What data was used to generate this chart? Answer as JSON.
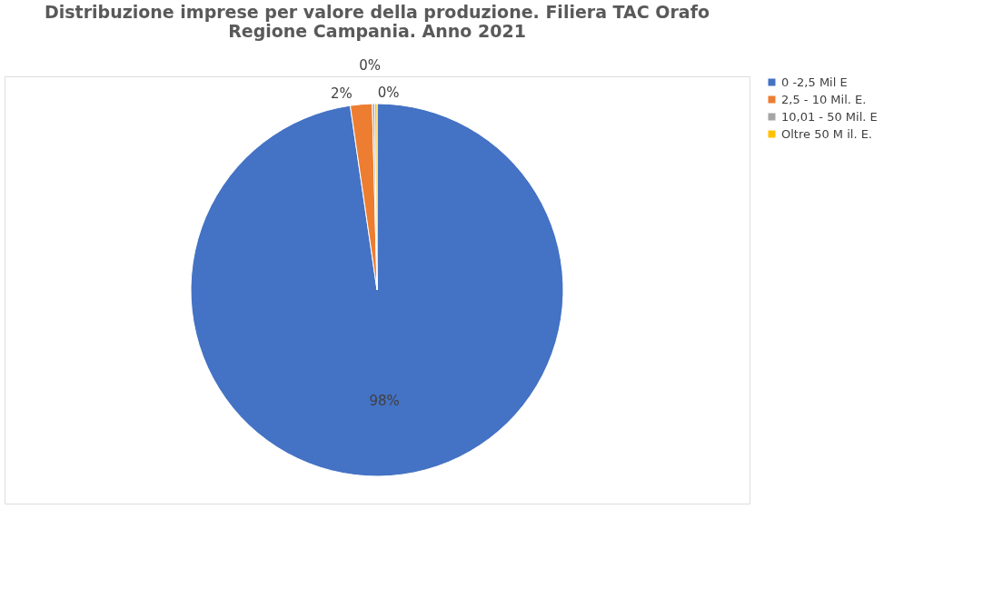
{
  "chart_data": {
    "type": "pie",
    "title": [
      "Distribuzione imprese per valore della produzione. Filiera TAC Orafo",
      "Regione Campania.  Anno 2021"
    ],
    "categories": [
      "0 -2,5 Mil E",
      "2,5 - 10 Mil. E.",
      "10,01 - 50 Mil. E",
      "Oltre 50 M il. E."
    ],
    "values": [
      97.7,
      1.9,
      0.2,
      0.2
    ],
    "colors": [
      "#4472c4",
      "#ed7d31",
      "#a5a5a5",
      "#ffc000"
    ],
    "value_labels": [
      "98%",
      "2%",
      "0%",
      "0%"
    ],
    "legend": "right"
  }
}
